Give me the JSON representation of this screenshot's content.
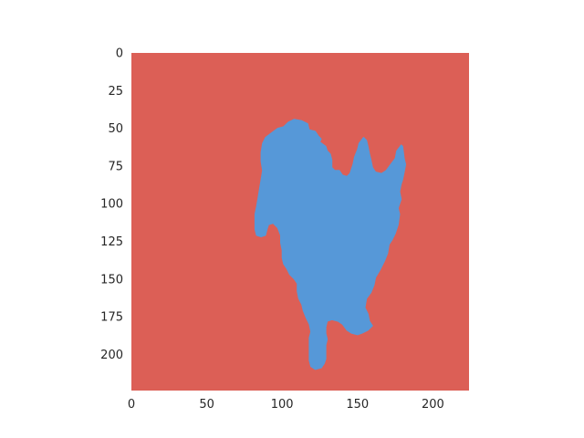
{
  "chart_data": {
    "type": "heatmap",
    "title": "",
    "xlabel": "",
    "ylabel": "",
    "xlim": [
      0,
      224
    ],
    "ylim": [
      224,
      0
    ],
    "grid": false,
    "xticks": [
      "0",
      "50",
      "100",
      "150",
      "200"
    ],
    "yticks": [
      "0",
      "25",
      "50",
      "75",
      "100",
      "125",
      "150",
      "175",
      "200"
    ],
    "classes": [
      {
        "value": 0,
        "color": "#dc5f56"
      },
      {
        "value": 1,
        "color": "#5698d8"
      }
    ],
    "mask_region": {
      "value": 1,
      "outline": [
        [
          108,
          44
        ],
        [
          113,
          45
        ],
        [
          117,
          47
        ],
        [
          118,
          51
        ],
        [
          122,
          52
        ],
        [
          124,
          55
        ],
        [
          126,
          57
        ],
        [
          125,
          59
        ],
        [
          129,
          62
        ],
        [
          130,
          65
        ],
        [
          132,
          67
        ],
        [
          133,
          71
        ],
        [
          133,
          76
        ],
        [
          135,
          78
        ],
        [
          138,
          78
        ],
        [
          140,
          81
        ],
        [
          143,
          82
        ],
        [
          145,
          80
        ],
        [
          147,
          74
        ],
        [
          148,
          69
        ],
        [
          150,
          64
        ],
        [
          151,
          60
        ],
        [
          154,
          56
        ],
        [
          156,
          58
        ],
        [
          157,
          62
        ],
        [
          158,
          67
        ],
        [
          159,
          71
        ],
        [
          160,
          76
        ],
        [
          162,
          79
        ],
        [
          166,
          80
        ],
        [
          169,
          78
        ],
        [
          172,
          74
        ],
        [
          175,
          70
        ],
        [
          176,
          65
        ],
        [
          179,
          61
        ],
        [
          180,
          62
        ],
        [
          181,
          70
        ],
        [
          182,
          74
        ],
        [
          181,
          79
        ],
        [
          180,
          84
        ],
        [
          179,
          87
        ],
        [
          178,
          92
        ],
        [
          179,
          97
        ],
        [
          177,
          103
        ],
        [
          178,
          107
        ],
        [
          177,
          114
        ],
        [
          175,
          120
        ],
        [
          173,
          124
        ],
        [
          171,
          127
        ],
        [
          170,
          133
        ],
        [
          168,
          138
        ],
        [
          165,
          144
        ],
        [
          162,
          149
        ],
        [
          161,
          154
        ],
        [
          159,
          159
        ],
        [
          156,
          163
        ],
        [
          155,
          169
        ],
        [
          157,
          173
        ],
        [
          158,
          178
        ],
        [
          160,
          181
        ],
        [
          157,
          184
        ],
        [
          153,
          186
        ],
        [
          150,
          187
        ],
        [
          146,
          186
        ],
        [
          143,
          184
        ],
        [
          140,
          180
        ],
        [
          137,
          178
        ],
        [
          133,
          177
        ],
        [
          130,
          178
        ],
        [
          129,
          182
        ],
        [
          129,
          186
        ],
        [
          130,
          190
        ],
        [
          129,
          194
        ],
        [
          129,
          199
        ],
        [
          129,
          203
        ],
        [
          128,
          206
        ],
        [
          126,
          209
        ],
        [
          122,
          210
        ],
        [
          119,
          208
        ],
        [
          118,
          204
        ],
        [
          118,
          199
        ],
        [
          118,
          194
        ],
        [
          118,
          189
        ],
        [
          119,
          185
        ],
        [
          118,
          180
        ],
        [
          116,
          176
        ],
        [
          114,
          171
        ],
        [
          113,
          167
        ],
        [
          111,
          163
        ],
        [
          110,
          158
        ],
        [
          110,
          153
        ],
        [
          108,
          150
        ],
        [
          105,
          147
        ],
        [
          103,
          143
        ],
        [
          101,
          140
        ],
        [
          100,
          136
        ],
        [
          100,
          131
        ],
        [
          99,
          126
        ],
        [
          99,
          121
        ],
        [
          97,
          116
        ],
        [
          94,
          113
        ],
        [
          91,
          114
        ],
        [
          90,
          117
        ],
        [
          89,
          121
        ],
        [
          86,
          122
        ],
        [
          83,
          121
        ],
        [
          82,
          117
        ],
        [
          82,
          112
        ],
        [
          82,
          107
        ],
        [
          83,
          102
        ],
        [
          84,
          96
        ],
        [
          85,
          90
        ],
        [
          86,
          84
        ],
        [
          87,
          78
        ],
        [
          86,
          72
        ],
        [
          86,
          66
        ],
        [
          87,
          60
        ],
        [
          89,
          56
        ],
        [
          93,
          53
        ],
        [
          97,
          50
        ],
        [
          101,
          49
        ],
        [
          104,
          46
        ]
      ]
    }
  }
}
